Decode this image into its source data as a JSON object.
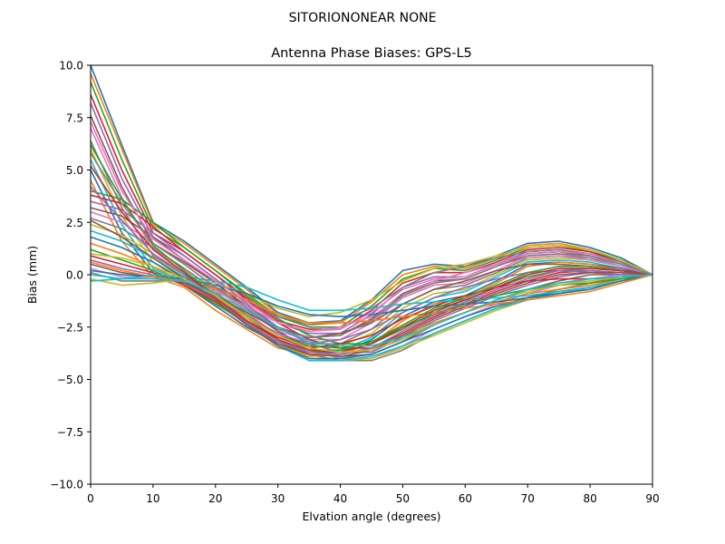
{
  "chart_data": {
    "type": "line",
    "suptitle": "SITORIONONEAR   NONE",
    "title": "Antenna Phase Biases: GPS-L5",
    "xlabel": "Elvation angle (degrees)",
    "ylabel": "Bias (mm)",
    "xlim": [
      0,
      90
    ],
    "ylim": [
      -10,
      10
    ],
    "xticks": [
      "0",
      "10",
      "20",
      "30",
      "40",
      "50",
      "60",
      "70",
      "80",
      "90"
    ],
    "yticks": [
      "10.0",
      "7.5",
      "5.0",
      "2.5",
      "0.0",
      "−2.5",
      "−5.0",
      "−7.5",
      "−10.0"
    ],
    "grid": false,
    "legend": "none",
    "x": [
      0,
      5,
      10,
      15,
      20,
      25,
      30,
      35,
      40,
      45,
      50,
      55,
      60,
      65,
      70,
      75,
      80,
      85,
      90
    ],
    "colors": [
      "#1f77b4",
      "#ff7f0e",
      "#2ca02c",
      "#d62728",
      "#9467bd",
      "#8c564b",
      "#e377c2",
      "#7f7f7f",
      "#bcbd22",
      "#17becf"
    ],
    "series": [
      {
        "values": [
          10.0,
          6.2,
          2.5,
          1.6,
          0.5,
          -0.6,
          -1.8,
          -2.3,
          -2.2,
          -1.2,
          0.2,
          0.5,
          0.4,
          0.9,
          1.5,
          1.6,
          1.3,
          0.8,
          0.0
        ]
      },
      {
        "values": [
          9.6,
          6.0,
          2.4,
          1.5,
          0.4,
          -0.7,
          -1.9,
          -2.4,
          -2.3,
          -1.3,
          0.0,
          0.4,
          0.3,
          0.8,
          1.4,
          1.5,
          1.2,
          0.7,
          0.0
        ]
      },
      {
        "values": [
          9.2,
          5.5,
          2.2,
          1.3,
          0.2,
          -0.9,
          -2.0,
          -2.5,
          -2.5,
          -1.5,
          -0.2,
          0.3,
          0.2,
          0.7,
          1.3,
          1.4,
          1.1,
          0.7,
          0.0
        ]
      },
      {
        "values": [
          8.6,
          5.0,
          2.0,
          1.1,
          0.0,
          -1.1,
          -2.2,
          -2.6,
          -2.6,
          -1.7,
          -0.4,
          0.1,
          0.1,
          0.6,
          1.2,
          1.3,
          1.1,
          0.6,
          0.0
        ]
      },
      {
        "values": [
          8.2,
          4.6,
          1.8,
          0.9,
          -0.2,
          -1.3,
          -2.3,
          -2.8,
          -2.8,
          -1.9,
          -0.6,
          -0.1,
          -0.1,
          0.5,
          1.1,
          1.2,
          1.0,
          0.6,
          0.0
        ]
      },
      {
        "values": [
          7.6,
          4.2,
          1.5,
          0.6,
          -0.4,
          -1.5,
          -2.5,
          -3.0,
          -2.9,
          -2.1,
          -0.9,
          -0.3,
          -0.2,
          0.4,
          1.0,
          1.1,
          0.9,
          0.5,
          0.0
        ]
      },
      {
        "values": [
          7.0,
          3.7,
          1.2,
          0.3,
          -0.7,
          -1.7,
          -2.7,
          -3.1,
          -3.1,
          -2.3,
          -1.1,
          -0.5,
          -0.4,
          0.2,
          0.9,
          1.0,
          0.8,
          0.5,
          0.0
        ]
      },
      {
        "values": [
          6.4,
          3.2,
          0.9,
          0.0,
          -0.9,
          -1.9,
          -2.9,
          -3.3,
          -3.3,
          -2.6,
          -1.4,
          -0.7,
          -0.5,
          0.1,
          0.8,
          0.9,
          0.8,
          0.4,
          0.0
        ]
      },
      {
        "values": [
          6.0,
          2.8,
          0.6,
          -0.2,
          -1.1,
          -2.1,
          -3.0,
          -3.4,
          -3.4,
          -2.8,
          -1.6,
          -0.9,
          -0.7,
          0.0,
          0.7,
          0.8,
          0.7,
          0.4,
          0.0
        ]
      },
      {
        "values": [
          5.5,
          2.4,
          0.3,
          -0.4,
          -1.3,
          -2.3,
          -3.2,
          -3.6,
          -3.6,
          -3.0,
          -1.8,
          -1.1,
          -0.8,
          -0.1,
          0.6,
          0.7,
          0.6,
          0.3,
          0.0
        ]
      },
      {
        "values": [
          5.0,
          2.0,
          0.1,
          -0.5,
          -1.5,
          -2.5,
          -3.3,
          -3.7,
          -3.7,
          -3.1,
          -2.0,
          -1.3,
          -1.0,
          -0.3,
          0.5,
          0.6,
          0.5,
          0.3,
          0.0
        ]
      },
      {
        "values": [
          4.5,
          1.6,
          -0.1,
          -0.6,
          -1.7,
          -2.6,
          -3.5,
          -3.8,
          -3.8,
          -3.3,
          -2.2,
          -1.4,
          -1.1,
          -0.4,
          0.4,
          0.6,
          0.5,
          0.2,
          0.0
        ]
      },
      {
        "values": [
          4.0,
          3.6,
          2.5,
          1.3,
          0.2,
          -1.0,
          -2.1,
          -2.9,
          -3.3,
          -3.3,
          -2.6,
          -1.8,
          -1.2,
          -0.6,
          -0.1,
          0.2,
          0.3,
          0.2,
          0.0
        ]
      },
      {
        "values": [
          3.8,
          3.4,
          2.3,
          1.1,
          0.0,
          -1.2,
          -2.3,
          -3.1,
          -3.5,
          -3.5,
          -2.8,
          -2.0,
          -1.4,
          -0.8,
          -0.3,
          0.1,
          0.2,
          0.1,
          0.0
        ]
      },
      {
        "values": [
          3.5,
          3.1,
          2.0,
          0.9,
          -0.2,
          -1.4,
          -2.5,
          -3.3,
          -3.7,
          -3.7,
          -3.0,
          -2.2,
          -1.6,
          -1.0,
          -0.5,
          -0.1,
          0.1,
          0.1,
          0.0
        ]
      },
      {
        "values": [
          3.2,
          2.8,
          1.8,
          0.7,
          -0.4,
          -1.6,
          -2.7,
          -3.5,
          -3.9,
          -3.8,
          -3.2,
          -2.4,
          -1.8,
          -1.2,
          -0.7,
          -0.3,
          0.0,
          0.0,
          0.0
        ]
      },
      {
        "values": [
          3.0,
          2.5,
          1.5,
          0.5,
          -0.6,
          -1.8,
          -2.9,
          -3.6,
          -4.0,
          -4.0,
          -3.4,
          -2.6,
          -2.0,
          -1.4,
          -0.9,
          -0.5,
          -0.2,
          0.0,
          0.0
        ]
      },
      {
        "values": [
          2.7,
          2.2,
          1.3,
          0.3,
          -0.8,
          -2.0,
          -3.1,
          -3.8,
          -4.1,
          -4.1,
          -3.6,
          -2.8,
          -2.2,
          -1.6,
          -1.1,
          -0.7,
          -0.4,
          -0.1,
          0.0
        ]
      },
      {
        "values": [
          2.4,
          1.9,
          1.0,
          0.1,
          -1.0,
          -2.2,
          -3.3,
          -4.0,
          -4.1,
          -4.0,
          -3.5,
          -2.9,
          -2.3,
          -1.7,
          -1.2,
          -0.9,
          -0.6,
          -0.2,
          0.0
        ]
      },
      {
        "values": [
          2.1,
          1.6,
          0.8,
          -0.1,
          -1.1,
          -2.3,
          -3.4,
          -4.1,
          -4.1,
          -3.9,
          -3.4,
          -2.8,
          -2.2,
          -1.6,
          -1.2,
          -0.9,
          -0.6,
          -0.3,
          0.0
        ]
      },
      {
        "values": [
          1.8,
          1.3,
          0.6,
          -0.3,
          -1.2,
          -2.4,
          -3.4,
          -4.0,
          -4.0,
          -3.8,
          -3.2,
          -2.6,
          -2.0,
          -1.5,
          -1.1,
          -0.8,
          -0.6,
          -0.3,
          0.0
        ]
      },
      {
        "values": [
          1.5,
          1.0,
          0.4,
          -0.4,
          -1.3,
          -2.4,
          -3.3,
          -3.9,
          -3.8,
          -3.5,
          -2.9,
          -2.3,
          -1.8,
          -1.3,
          -0.9,
          -0.7,
          -0.5,
          -0.2,
          0.0
        ]
      },
      {
        "values": [
          1.2,
          0.7,
          0.2,
          -0.5,
          -1.4,
          -2.3,
          -3.2,
          -3.7,
          -3.6,
          -3.2,
          -2.5,
          -1.9,
          -1.4,
          -1.0,
          -0.7,
          -0.5,
          -0.4,
          -0.2,
          0.0
        ]
      },
      {
        "values": [
          0.9,
          0.5,
          0.1,
          -0.5,
          -1.3,
          -2.2,
          -3.0,
          -3.5,
          -3.3,
          -2.9,
          -2.1,
          -1.5,
          -1.0,
          -0.6,
          -0.3,
          -0.2,
          -0.2,
          -0.1,
          0.0
        ]
      },
      {
        "values": [
          0.7,
          0.3,
          0.0,
          -0.4,
          -1.2,
          -2.0,
          -2.8,
          -3.3,
          -3.1,
          -2.6,
          -1.8,
          -1.1,
          -0.6,
          -0.2,
          0.1,
          0.2,
          0.1,
          0.0,
          0.0
        ]
      },
      {
        "values": [
          0.5,
          0.1,
          -0.1,
          -0.4,
          -1.0,
          -1.8,
          -2.6,
          -3.0,
          -2.8,
          -2.3,
          -1.4,
          -0.7,
          -0.3,
          0.2,
          0.5,
          0.5,
          0.4,
          0.2,
          0.0
        ]
      },
      {
        "values": [
          0.3,
          -0.1,
          -0.2,
          -0.3,
          -0.8,
          -1.5,
          -2.3,
          -2.7,
          -2.5,
          -2.0,
          -1.0,
          -0.3,
          0.1,
          0.5,
          0.8,
          0.9,
          0.7,
          0.4,
          0.0
        ]
      },
      {
        "values": [
          0.1,
          -0.3,
          -0.3,
          -0.3,
          -0.6,
          -1.2,
          -2.0,
          -2.4,
          -2.2,
          -1.6,
          -0.6,
          0.1,
          0.4,
          0.8,
          1.1,
          1.2,
          1.0,
          0.6,
          0.0
        ]
      },
      {
        "values": [
          -0.2,
          -0.5,
          -0.4,
          -0.2,
          -0.4,
          -0.9,
          -1.6,
          -2.0,
          -1.8,
          -1.2,
          -0.3,
          0.3,
          0.5,
          0.9,
          1.3,
          1.4,
          1.2,
          0.7,
          0.0
        ]
      },
      {
        "values": [
          -0.3,
          -0.2,
          0.0,
          -0.1,
          -0.3,
          -0.6,
          -1.2,
          -1.7,
          -1.7,
          -1.6,
          -1.4,
          -1.3,
          -1.2,
          -1.1,
          -1.0,
          -0.8,
          -0.6,
          -0.3,
          0.0
        ]
      },
      {
        "values": [
          0.2,
          0.0,
          -0.1,
          -0.2,
          -0.5,
          -0.9,
          -1.5,
          -1.9,
          -2.0,
          -1.9,
          -1.7,
          -1.5,
          -1.4,
          -1.3,
          -1.1,
          -0.9,
          -0.7,
          -0.3,
          0.0
        ]
      },
      {
        "values": [
          0.6,
          0.2,
          -0.1,
          -0.3,
          -0.7,
          -1.2,
          -1.9,
          -2.3,
          -2.3,
          -2.2,
          -2.0,
          -1.8,
          -1.6,
          -1.4,
          -1.2,
          -1.0,
          -0.8,
          -0.4,
          0.0
        ]
      },
      {
        "values": [
          6.2,
          3.6,
          1.4,
          0.2,
          -1.0,
          -2.0,
          -2.9,
          -3.4,
          -3.5,
          -3.2,
          -2.4,
          -1.6,
          -1.1,
          -0.5,
          0.1,
          0.4,
          0.4,
          0.2,
          0.0
        ]
      },
      {
        "values": [
          5.2,
          3.0,
          1.2,
          0.1,
          -1.1,
          -2.2,
          -3.1,
          -3.6,
          -3.7,
          -3.3,
          -2.5,
          -1.7,
          -1.2,
          -0.6,
          0.0,
          0.3,
          0.3,
          0.2,
          0.0
        ]
      },
      {
        "values": [
          4.2,
          2.6,
          1.0,
          0.0,
          -1.2,
          -2.3,
          -3.2,
          -3.7,
          -3.8,
          -3.5,
          -2.7,
          -1.9,
          -1.3,
          -0.7,
          -0.2,
          0.2,
          0.2,
          0.1,
          0.0
        ]
      },
      {
        "values": [
          2.6,
          1.8,
          0.8,
          -0.2,
          -1.2,
          -2.4,
          -3.3,
          -3.8,
          -3.9,
          -3.6,
          -2.9,
          -2.1,
          -1.5,
          -0.9,
          -0.4,
          0.0,
          0.1,
          0.1,
          0.0
        ]
      },
      {
        "values": [
          7.3,
          4.0,
          1.7,
          0.7,
          -0.3,
          -1.3,
          -2.3,
          -2.7,
          -2.6,
          -1.8,
          -0.7,
          -0.2,
          -0.1,
          0.5,
          1.0,
          1.1,
          1.0,
          0.5,
          0.0
        ]
      },
      {
        "values": [
          5.8,
          3.4,
          1.5,
          0.5,
          -0.6,
          -1.6,
          -2.6,
          -3.0,
          -2.9,
          -2.2,
          -1.0,
          -0.4,
          -0.2,
          0.4,
          0.9,
          1.0,
          0.9,
          0.5,
          0.0
        ]
      },
      {
        "values": [
          1.0,
          0.8,
          0.4,
          -0.2,
          -1.0,
          -2.0,
          -2.9,
          -3.5,
          -3.7,
          -3.6,
          -3.1,
          -2.4,
          -1.8,
          -1.2,
          -0.8,
          -0.5,
          -0.3,
          -0.1,
          0.0
        ]
      },
      {
        "values": [
          0.0,
          -0.2,
          -0.2,
          -0.3,
          -0.9,
          -1.7,
          -2.5,
          -3.2,
          -3.4,
          -3.4,
          -3.0,
          -2.4,
          -1.8,
          -1.2,
          -0.7,
          -0.4,
          -0.2,
          -0.1,
          0.0
        ]
      }
    ]
  }
}
